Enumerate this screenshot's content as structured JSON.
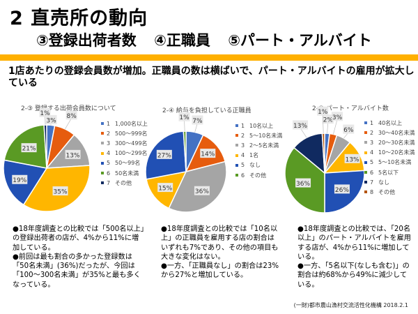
{
  "header": {
    "title": "2  直売所の動向",
    "subtitle_items": [
      "③登録出荷者数",
      "④正職員",
      "⑤パート・アルバイト"
    ],
    "accent_color": "#FFB000"
  },
  "summary": "1店あたりの登録会員数が増加。正職員の数は横ばいで、パート・アルバイトの雇用が拡大している",
  "chart_data": [
    {
      "type": "pie",
      "title": "2-③  登録する出荷会員数について",
      "legend_position": "right",
      "categories": [
        "1,000名以上",
        "500〜999名",
        "300〜499名",
        "100〜299名",
        "50〜99名",
        "50名未満",
        "その他"
      ],
      "legend_numbers": [
        "1",
        "2",
        "3",
        "4",
        "5",
        "6",
        "7"
      ],
      "values": [
        3,
        8,
        13,
        35,
        19,
        21,
        1
      ],
      "labels": [
        "3%",
        "8%",
        "13%",
        "35%",
        "19%",
        "21%",
        "1%"
      ],
      "colors": [
        "#4472C4",
        "#E65C0E",
        "#A5A5A5",
        "#FFB600",
        "#2150B4",
        "#5A9A24",
        "#102A60"
      ]
    },
    {
      "type": "pie",
      "title": "2-④  給与を負担している正職員",
      "legend_position": "right",
      "categories": [
        "10名以上",
        "5〜10名未満",
        "2〜5名未満",
        "1名",
        "なし",
        "その他"
      ],
      "legend_numbers": [
        "1",
        "2",
        "3",
        "4",
        "5",
        "6"
      ],
      "values": [
        7,
        14,
        36,
        15,
        27,
        1
      ],
      "labels": [
        "7%",
        "14%",
        "36%",
        "15%",
        "27%",
        "1%"
      ],
      "colors": [
        "#4472C4",
        "#E65C0E",
        "#A5A5A5",
        "#FFB600",
        "#2150B4",
        "#5A9A24"
      ]
    },
    {
      "type": "pie",
      "title": "2-⑤  パート・アルバイト数",
      "legend_position": "right",
      "categories": [
        "40名以上",
        "30〜40名未満",
        "20〜30名未満",
        "10〜20名未満",
        "5〜10名未満",
        "5名以下",
        "なし",
        "その他"
      ],
      "legend_numbers": [
        "1",
        "2",
        "3",
        "4",
        "5",
        "6",
        "7",
        "8"
      ],
      "values": [
        2,
        3,
        6,
        13,
        26,
        36,
        13,
        1
      ],
      "labels": [
        "2%",
        "3%",
        "6%",
        "13%",
        "26%",
        "36%",
        "13%",
        "1%"
      ],
      "colors": [
        "#4472C4",
        "#E65C0E",
        "#A5A5A5",
        "#FFB600",
        "#2150B4",
        "#5A9A24",
        "#102A60",
        "#B4540A"
      ]
    }
  ],
  "notes": [
    [
      "●18年度調査との比較では「500名以上」の登録出荷者の店が、4%から11%に増加している。",
      "●前回は最も割合の多かった登録数は「50名未満」(36%)だったが、今回は「100〜300名未満」が35%と最も多くなっている。"
    ],
    [
      "●18年度調査との比較では「10名以上」の正職員を雇用する店の割合はいずれも7%であり、その他の項目も大きな変化はない。",
      "●一方、「正職員なし」の割合は23%から27%と増加している。"
    ],
    [
      "●18年度調査との比較では、「20名以上」のパート・アルバイトを雇用する店が、4%から11%に増加している。",
      "●一方、「5名以下(なしも含む)」の割合は約68%から49%に減少している。"
    ]
  ],
  "footer": "(一財)都市農山漁村交流活性化機構 2018.2.1"
}
